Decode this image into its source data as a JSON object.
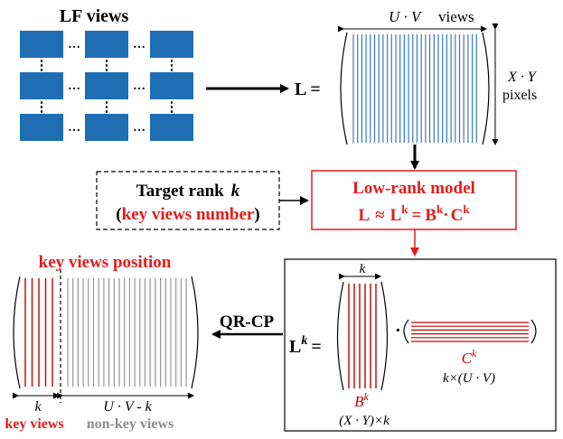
{
  "colors": {
    "blue_view": "#1f6eb4",
    "blue_line": "#3a78c2",
    "red": "#e31b1b",
    "dark_red": "#c00000",
    "gray": "#8c8c8c",
    "black": "#000000"
  },
  "lf_views": {
    "title": "LF views",
    "dots_h": "…",
    "dots_v": "⋮"
  },
  "matrix_L": {
    "lhs": "L =",
    "top_var": "U · V",
    "top_word": "views",
    "right_var": "X · Y",
    "right_word": "pixels"
  },
  "target_rank": {
    "line1_text": "Target rank",
    "line1_var": "k",
    "line2_open": "(",
    "line2_red": "key views number",
    "line2_close": ")"
  },
  "low_rank_model": {
    "title": "Low-rank model",
    "eq_L": "L",
    "eq_approx": "≈",
    "eq_Lk": "L",
    "eq_eq": "=",
    "eq_B": "B",
    "eq_dot": "·",
    "eq_C": "C",
    "sup_k": "k"
  },
  "decomposition": {
    "lhs_L": "L",
    "lhs_sup": "k",
    "lhs_eq": "=",
    "dot": "·",
    "k_label": "k",
    "B_label": "B",
    "B_sup": "k",
    "B_dims": "(X · Y)×k",
    "C_label": "C",
    "C_sup": "k",
    "C_dims": "k×(U · V)"
  },
  "qrcp": {
    "label": "QR-CP"
  },
  "key_views_position": {
    "title": "key views position",
    "k_label": "k",
    "rest_label": "U · V - k",
    "key_views": "key views",
    "non_key_views": "non-key views"
  }
}
